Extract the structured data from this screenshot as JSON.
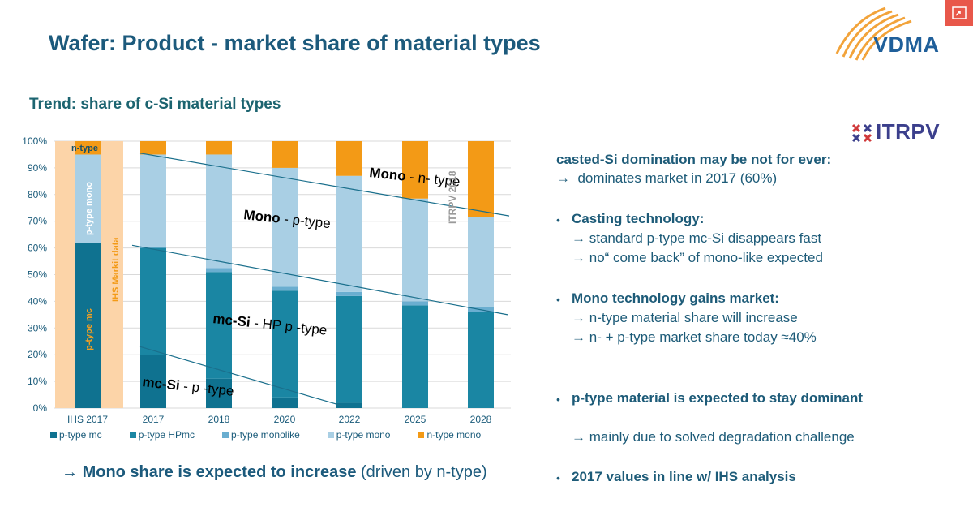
{
  "header": {
    "title": "Wafer: Product - market share of material types",
    "subtitle": "Trend: share of c-Si material types",
    "logo_vdma": "VDMA",
    "logo_itrpv": "ITRPV"
  },
  "colors": {
    "p_type_mc": "#0f7290",
    "p_type_hpmc": "#1a86a3",
    "p_type_monolike": "#6aaed0",
    "p_type_mono": "#a9cfe4",
    "n_type_mono": "#f39a16",
    "ihs_band": "#fcd4a8",
    "title": "#1c5a7c"
  },
  "chart_data": {
    "type": "bar",
    "stacked": true,
    "categories": [
      "IHS 2017",
      "2017",
      "2018",
      "2020",
      "2022",
      "2025",
      "2028"
    ],
    "series": [
      {
        "name": "p-type mc",
        "values": [
          62,
          20,
          11,
          4,
          2,
          0,
          0
        ]
      },
      {
        "name": "p-type HPmc",
        "values": [
          0,
          40,
          40,
          40,
          40,
          38.5,
          36
        ]
      },
      {
        "name": "p-type monolike",
        "values": [
          0,
          0.5,
          1.5,
          1.5,
          1.5,
          1.5,
          2
        ]
      },
      {
        "name": "p-type mono",
        "values": [
          33,
          34.5,
          42.5,
          44.5,
          43.5,
          38.5,
          33.5
        ]
      },
      {
        "name": "n-type mono",
        "values": [
          5,
          5,
          5,
          10,
          13,
          21.5,
          28.5
        ]
      }
    ],
    "y_ticks": [
      "0%",
      "10%",
      "20%",
      "30%",
      "40%",
      "50%",
      "60%",
      "70%",
      "80%",
      "90%",
      "100%"
    ],
    "ylim": [
      0,
      100
    ],
    "grid": true,
    "legend_position": "bottom",
    "ihs_labels": {
      "n_type": "n-type",
      "p_type_mono": "p-type mono",
      "p_type_mc": "p-type mc",
      "source": "IHS Markit data"
    },
    "annotations": {
      "mono_n": {
        "bold": "Mono",
        "rest": " - n- type"
      },
      "mono_p": {
        "bold": "Mono",
        "rest": " - p-type"
      },
      "mcsi_hp": {
        "bold": "mc-Si",
        "rest": " - HP p -type"
      },
      "mcsi_p": {
        "bold": "mc-Si",
        "rest": " - p -type"
      },
      "watermark": "ITRPV 2018"
    }
  },
  "conclusion": {
    "arrow": "→",
    "bold": "Mono share is expected to increase",
    "rest": " (driven by n-type)"
  },
  "right_panel": {
    "heading": "casted-Si domination may be not for ever:",
    "heading_sub": "dominates market in 2017 (60%)",
    "casting_title": "Casting technology:",
    "casting_1": "standard p-type mc-Si disappears fast",
    "casting_2": "no“ come back” of mono-like expected",
    "mono_title": "Mono technology gains market:",
    "mono_1": "n-type material share will increase",
    "mono_2": "n- + p-type market share today ≈40%",
    "ptype_title": "p-type material is expected to stay dominant",
    "ptype_1": "mainly due to solved degradation challenge",
    "ihs_line": "2017 values in line w/ IHS analysis",
    "arrow": "→",
    "bullet": "•"
  }
}
